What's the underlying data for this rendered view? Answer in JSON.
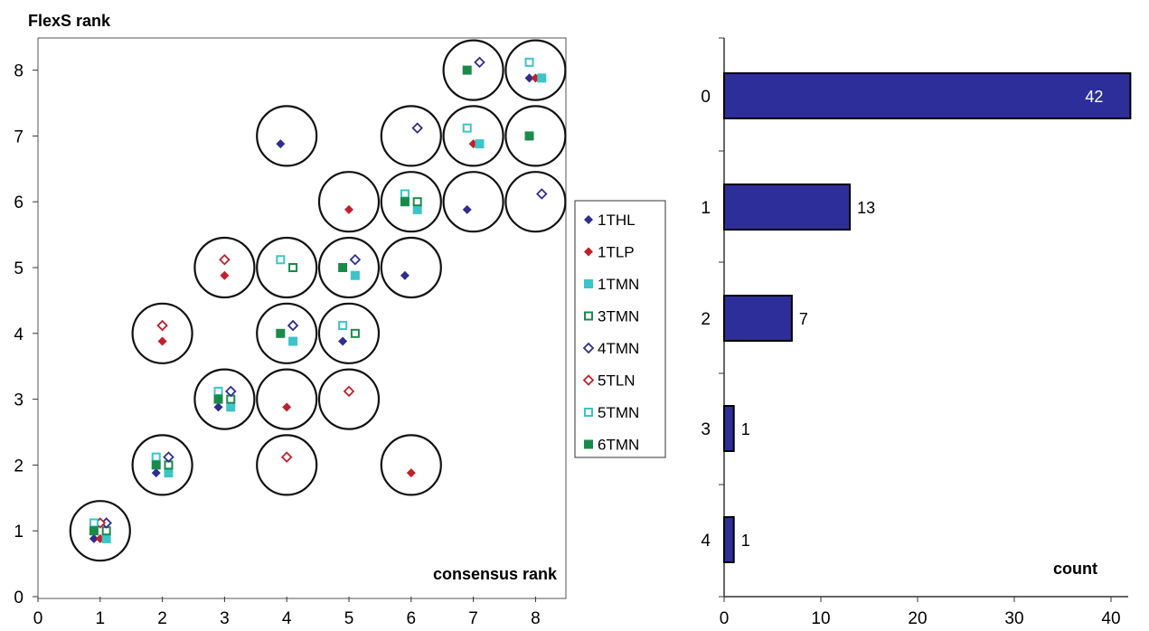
{
  "chart_data": [
    {
      "type": "scatter",
      "title": "",
      "ylabel": "FlexS rank",
      "xlabel": "consensus rank",
      "xlim": [
        0,
        8.5
      ],
      "ylim": [
        0,
        8.5
      ],
      "xticks": [
        0,
        1,
        2,
        3,
        4,
        5,
        6,
        7,
        8
      ],
      "yticks": [
        0,
        1,
        2,
        3,
        4,
        5,
        6,
        7,
        8
      ],
      "grid": false,
      "legend_position": "right",
      "circles": [
        [
          1,
          1
        ],
        [
          2,
          2
        ],
        [
          4,
          2
        ],
        [
          6,
          2
        ],
        [
          3,
          3
        ],
        [
          4,
          3
        ],
        [
          5,
          3
        ],
        [
          2,
          4
        ],
        [
          4,
          4
        ],
        [
          5,
          4
        ],
        [
          3,
          5
        ],
        [
          4,
          5
        ],
        [
          5,
          5
        ],
        [
          6,
          5
        ],
        [
          5,
          6
        ],
        [
          6,
          6
        ],
        [
          7,
          6
        ],
        [
          8,
          6
        ],
        [
          4,
          7
        ],
        [
          6,
          7
        ],
        [
          7,
          7
        ],
        [
          8,
          7
        ],
        [
          7,
          8
        ],
        [
          8,
          8
        ]
      ],
      "series": [
        {
          "name": "1THL",
          "color": "#2e2e8f",
          "marker": "diamond",
          "filled": true,
          "points": [
            [
              0.9,
              0.88
            ],
            [
              1.9,
              1.88
            ],
            [
              2.9,
              2.88
            ],
            [
              3.9,
              6.88
            ],
            [
              4.9,
              3.88
            ],
            [
              5.9,
              4.88
            ],
            [
              6.9,
              5.88
            ],
            [
              7.9,
              7.88
            ]
          ]
        },
        {
          "name": "1TLP",
          "color": "#c0202a",
          "marker": "diamond",
          "filled": true,
          "points": [
            [
              1.0,
              0.88
            ],
            [
              2.0,
              3.88
            ],
            [
              3.0,
              4.88
            ],
            [
              4.0,
              2.88
            ],
            [
              5.0,
              5.88
            ],
            [
              6.0,
              1.88
            ],
            [
              7.0,
              6.88
            ],
            [
              8.0,
              7.88
            ]
          ]
        },
        {
          "name": "1TMN",
          "color": "#3cc4c8",
          "marker": "square",
          "filled": true,
          "points": [
            [
              1.1,
              0.88
            ],
            [
              2.1,
              1.88
            ],
            [
              3.1,
              2.88
            ],
            [
              4.1,
              3.88
            ],
            [
              5.1,
              4.88
            ],
            [
              6.1,
              5.88
            ],
            [
              7.1,
              6.88
            ],
            [
              8.1,
              7.88
            ]
          ]
        },
        {
          "name": "3TMN",
          "color": "#1a8a4a",
          "marker": "square",
          "filled": false,
          "points": [
            [
              1.1,
              1.0
            ],
            [
              2.1,
              2.0
            ],
            [
              3.1,
              3.0
            ],
            [
              4.1,
              5.0
            ],
            [
              5.1,
              4.0
            ],
            [
              6.1,
              6.0
            ]
          ]
        },
        {
          "name": "4TMN",
          "color": "#2e2e8f",
          "marker": "diamond",
          "filled": false,
          "points": [
            [
              1.1,
              1.12
            ],
            [
              2.1,
              2.12
            ],
            [
              3.1,
              3.12
            ],
            [
              4.1,
              4.12
            ],
            [
              5.1,
              5.12
            ],
            [
              6.1,
              7.12
            ],
            [
              7.1,
              8.12
            ],
            [
              8.1,
              6.12
            ]
          ]
        },
        {
          "name": "5TLN",
          "color": "#c0202a",
          "marker": "diamond",
          "filled": false,
          "points": [
            [
              1.0,
              1.12
            ],
            [
              2.0,
              4.12
            ],
            [
              3.0,
              5.12
            ],
            [
              4.0,
              2.12
            ],
            [
              5.0,
              3.12
            ]
          ]
        },
        {
          "name": "5TMN",
          "color": "#3cc4c8",
          "marker": "square",
          "filled": false,
          "points": [
            [
              0.9,
              1.12
            ],
            [
              1.9,
              2.12
            ],
            [
              2.9,
              3.12
            ],
            [
              3.9,
              5.12
            ],
            [
              4.9,
              4.12
            ],
            [
              5.9,
              6.12
            ],
            [
              6.9,
              7.12
            ],
            [
              7.9,
              8.12
            ]
          ]
        },
        {
          "name": "6TMN",
          "color": "#1a8a4a",
          "marker": "square",
          "filled": true,
          "points": [
            [
              0.9,
              1.0
            ],
            [
              1.9,
              2.0
            ],
            [
              2.9,
              3.0
            ],
            [
              3.9,
              4.0
            ],
            [
              4.9,
              5.0
            ],
            [
              5.9,
              6.0
            ],
            [
              6.9,
              8.0
            ],
            [
              7.9,
              7.0
            ]
          ]
        }
      ]
    },
    {
      "type": "bar",
      "orientation": "horizontal",
      "title": "",
      "xlabel": "count",
      "ylabel": "",
      "categories": [
        "0",
        "1",
        "2",
        "3",
        "4"
      ],
      "values": [
        42,
        13,
        7,
        1,
        1
      ],
      "xlim": [
        0,
        42
      ],
      "xticks": [
        0,
        10,
        20,
        30,
        40
      ],
      "bar_color": "#2e2e9a",
      "grid": false
    }
  ]
}
